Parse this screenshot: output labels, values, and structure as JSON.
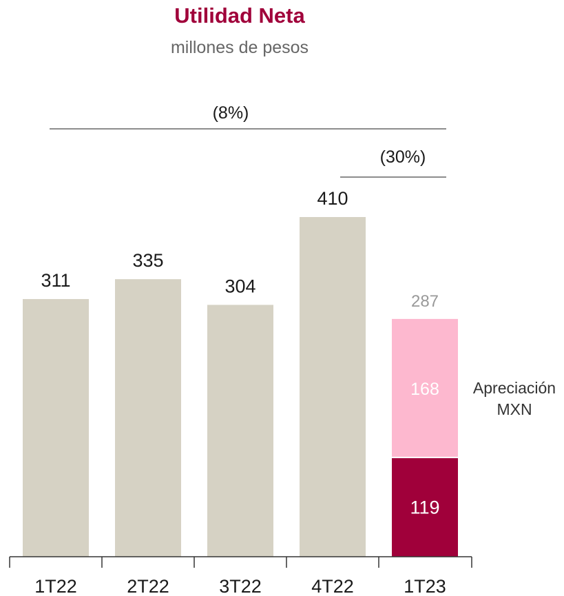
{
  "chart_data": {
    "type": "bar",
    "title": "Utilidad Neta",
    "subtitle": "millones de pesos",
    "categories": [
      "1T22",
      "2T22",
      "3T22",
      "4T22",
      "1T23"
    ],
    "values": [
      311,
      335,
      304,
      410,
      null
    ],
    "total_labels": [
      "311",
      "335",
      "304",
      "410",
      "287"
    ],
    "stack_1T23": {
      "base": 119,
      "top": 168,
      "total": 287,
      "segment_label": "Apreciación MXN",
      "segment_label_lines": [
        "Apreciación",
        "MXN"
      ]
    },
    "comparisons": [
      {
        "label": "(8%)",
        "from": "1T22",
        "to": "1T23"
      },
      {
        "label": "(30%)",
        "from": "4T22",
        "to": "1T23"
      }
    ],
    "ylim": [
      0,
      410
    ],
    "xlabel": "",
    "ylabel": "",
    "grid": false,
    "colors": {
      "title": "#a0003a",
      "subtitle": "#666666",
      "bar": "#d6d2c4",
      "stack_base": "#a0003a",
      "stack_top": "#fdb8cf",
      "label_dark": "#1a1a1a",
      "label_muted": "#999999",
      "axis": "#333333",
      "comparison_line": "#666666"
    }
  }
}
